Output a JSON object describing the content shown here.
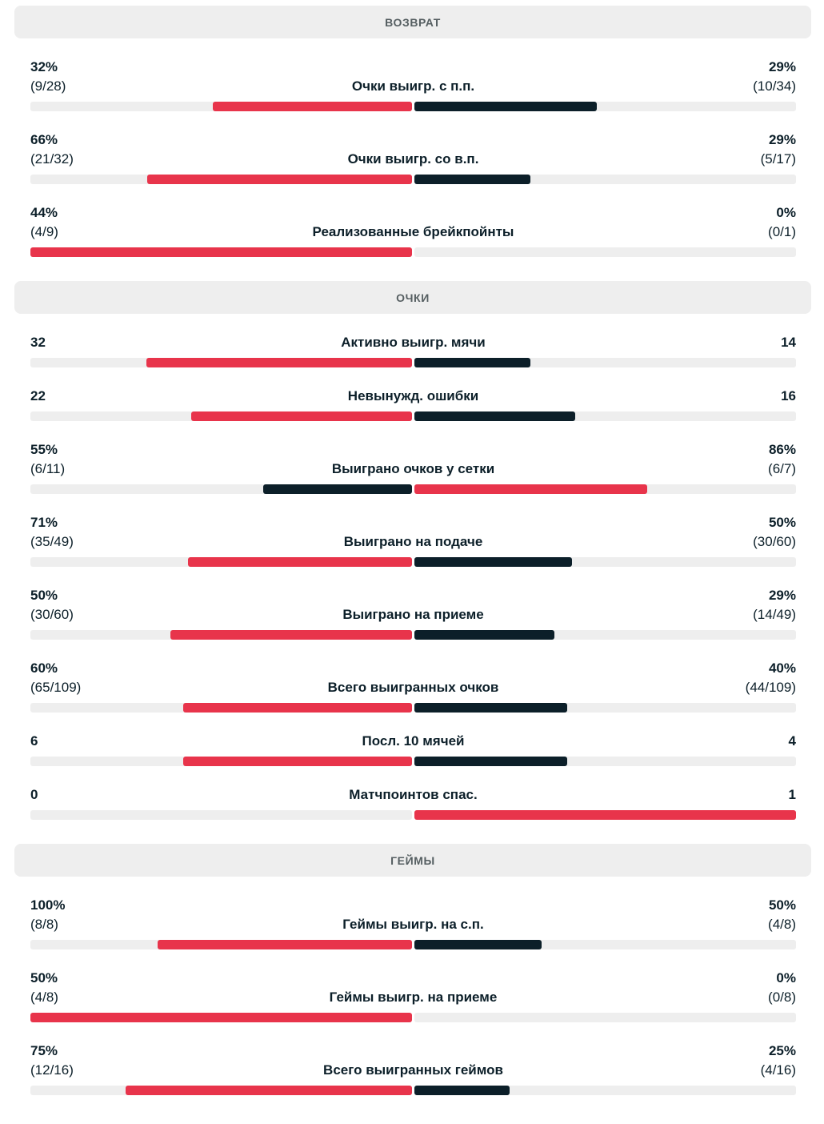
{
  "colors": {
    "win": "#e8344b",
    "lose": "#0c1f29",
    "track": "#eeeeee"
  },
  "sections": [
    {
      "title": "ВОЗВРАТ",
      "rows": [
        {
          "label": "Очки выигр. с п.п.",
          "left": "32%",
          "left_detail": "(9/28)",
          "right": "29%",
          "right_detail": "(10/34)",
          "left_share": 0.522,
          "right_share": 0.478,
          "winner": "left"
        },
        {
          "label": "Очки выигр. со в.п.",
          "left": "66%",
          "left_detail": "(21/32)",
          "right": "29%",
          "right_detail": "(5/17)",
          "left_share": 0.695,
          "right_share": 0.305,
          "winner": "left"
        },
        {
          "label": "Реализованные брейкпойнты",
          "left": "44%",
          "left_detail": "(4/9)",
          "right": "0%",
          "right_detail": "(0/1)",
          "left_share": 1.0,
          "right_share": 0.0,
          "winner": "left"
        }
      ]
    },
    {
      "title": "ОЧКИ",
      "rows": [
        {
          "label": "Активно выигр. мячи",
          "left": "32",
          "right": "14",
          "left_share": 0.696,
          "right_share": 0.304,
          "winner": "left"
        },
        {
          "label": "Невынужд. ошибки",
          "left": "22",
          "right": "16",
          "left_share": 0.579,
          "right_share": 0.421,
          "winner": "left"
        },
        {
          "label": "Выиграно очков у сетки",
          "left": "55%",
          "left_detail": "(6/11)",
          "right": "86%",
          "right_detail": "(6/7)",
          "left_share": 0.39,
          "right_share": 0.61,
          "winner": "right"
        },
        {
          "label": "Выиграно на подаче",
          "left": "71%",
          "left_detail": "(35/49)",
          "right": "50%",
          "right_detail": "(30/60)",
          "left_share": 0.587,
          "right_share": 0.413,
          "winner": "left"
        },
        {
          "label": "Выиграно на приеме",
          "left": "50%",
          "left_detail": "(30/60)",
          "right": "29%",
          "right_detail": "(14/49)",
          "left_share": 0.633,
          "right_share": 0.367,
          "winner": "left"
        },
        {
          "label": "Всего выигранных очков",
          "left": "60%",
          "left_detail": "(65/109)",
          "right": "40%",
          "right_detail": "(44/109)",
          "left_share": 0.6,
          "right_share": 0.4,
          "winner": "left"
        },
        {
          "label": "Посл. 10 мячей",
          "left": "6",
          "right": "4",
          "left_share": 0.6,
          "right_share": 0.4,
          "winner": "left"
        },
        {
          "label": "Матчпоинтов спас.",
          "left": "0",
          "right": "1",
          "left_share": 0.0,
          "right_share": 1.0,
          "winner": "right"
        }
      ]
    },
    {
      "title": "ГЕЙМЫ",
      "rows": [
        {
          "label": "Геймы выигр. на с.п.",
          "left": "100%",
          "left_detail": "(8/8)",
          "right": "50%",
          "right_detail": "(4/8)",
          "left_share": 0.667,
          "right_share": 0.333,
          "winner": "left"
        },
        {
          "label": "Геймы выигр. на приеме",
          "left": "50%",
          "left_detail": "(4/8)",
          "right": "0%",
          "right_detail": "(0/8)",
          "left_share": 1.0,
          "right_share": 0.0,
          "winner": "left"
        },
        {
          "label": "Всего выигранных геймов",
          "left": "75%",
          "left_detail": "(12/16)",
          "right": "25%",
          "right_detail": "(4/16)",
          "left_share": 0.75,
          "right_share": 0.25,
          "winner": "left"
        }
      ]
    }
  ]
}
